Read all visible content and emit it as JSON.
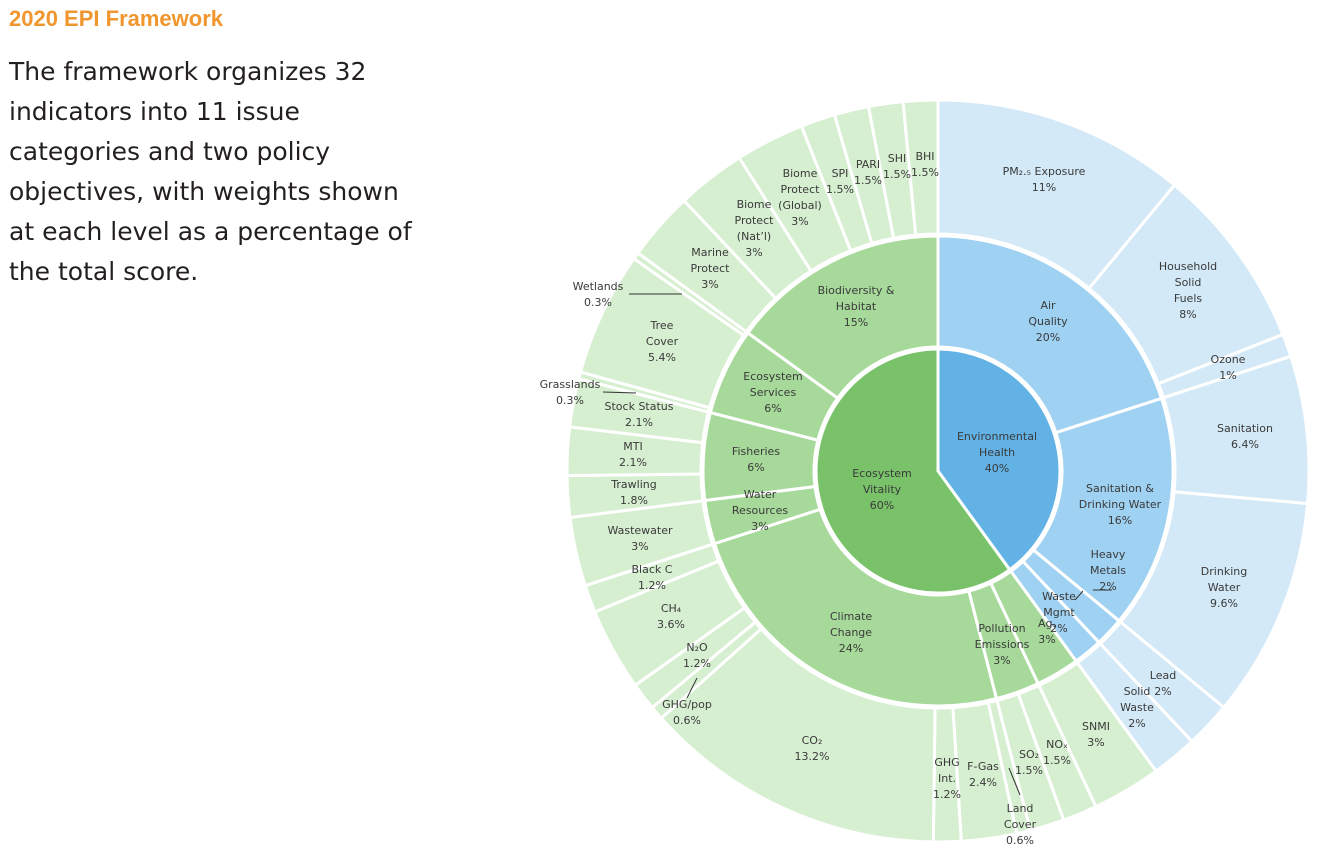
{
  "header": {
    "title": "2020 EPI Framework",
    "description": "The framework organizes 32 indicators into 11 issue categories and two policy objectives, with weights shown at each level as a percentage of the total score."
  },
  "colors": {
    "eh_inner": "#62b2e6",
    "eh_mid": "#9fd1f2",
    "eh_outer": "#d3e9f7",
    "ev_inner": "#79c26a",
    "ev_mid": "#a7da9a",
    "ev_outer": "#d7efd1",
    "separator": "#ffffff"
  },
  "chart_data": {
    "type": "sunburst",
    "levels": [
      "policy objective",
      "issue category",
      "indicator"
    ],
    "objectives": [
      {
        "name": "Environmental Health",
        "weight": 40,
        "label": [
          "Environmental",
          "Health",
          "40%"
        ],
        "categories": [
          {
            "name": "Air Quality",
            "weight": 20,
            "label": [
              "Air",
              "Quality",
              "20%"
            ],
            "indicators": [
              {
                "name": "PM2.5 Exposure",
                "weight": 11,
                "label": [
                  "PM₂.₅ Exposure",
                  "11%"
                ]
              },
              {
                "name": "Household Solid Fuels",
                "weight": 8,
                "label": [
                  "Household",
                  "Solid",
                  "Fuels",
                  "8%"
                ]
              },
              {
                "name": "Ozone",
                "weight": 1,
                "label": [
                  "Ozone",
                  "1%"
                ]
              }
            ]
          },
          {
            "name": "Sanitation & Drinking Water",
            "weight": 16,
            "label": [
              "Sanitation &",
              "Drinking Water",
              "16%"
            ],
            "indicators": [
              {
                "name": "Sanitation",
                "weight": 6.4,
                "label": [
                  "Sanitation",
                  "6.4%"
                ]
              },
              {
                "name": "Drinking Water",
                "weight": 9.6,
                "label": [
                  "Drinking",
                  "Water",
                  "9.6%"
                ]
              }
            ]
          },
          {
            "name": "Heavy Metals",
            "weight": 2,
            "label": [
              "Heavy",
              "Metals",
              "2%"
            ],
            "indicators": [
              {
                "name": "Lead",
                "weight": 2,
                "label": [
                  "Lead",
                  "2%"
                ]
              }
            ]
          },
          {
            "name": "Waste Mgmt",
            "weight": 2,
            "label": [
              "Waste",
              "Mgmt",
              "2%"
            ],
            "indicators": [
              {
                "name": "Solid Waste",
                "weight": 2,
                "label": [
                  "Solid",
                  "Waste",
                  "2%"
                ]
              }
            ]
          }
        ]
      },
      {
        "name": "Ecosystem Vitality",
        "weight": 60,
        "label": [
          "Ecosystem",
          "Vitality",
          "60%"
        ],
        "categories": [
          {
            "name": "Ag.",
            "weight": 3,
            "label": [
              "Ag.",
              "3%"
            ],
            "indicators": [
              {
                "name": "SNMI",
                "weight": 3,
                "label": [
                  "SNMI",
                  "3%"
                ]
              }
            ]
          },
          {
            "name": "Pollution Emissions",
            "weight": 3,
            "label": [
              "Pollution",
              "Emissions",
              "3%"
            ],
            "indicators": [
              {
                "name": "NOx",
                "weight": 1.5,
                "label": [
                  "NOₓ",
                  "1.5%"
                ]
              },
              {
                "name": "SO2",
                "weight": 1.5,
                "label": [
                  "SO₂",
                  "1.5%"
                ]
              }
            ]
          },
          {
            "name": "Climate Change",
            "weight": 24,
            "label": [
              "Climate",
              "Change",
              "24%"
            ],
            "indicators": [
              {
                "name": "Land Cover",
                "weight": 0.6,
                "label": [
                  "Land",
                  "Cover",
                  "0.6%"
                ]
              },
              {
                "name": "F-Gas",
                "weight": 2.4,
                "label": [
                  "F-Gas",
                  "2.4%"
                ]
              },
              {
                "name": "GHG Int.",
                "weight": 1.2,
                "label": [
                  "GHG",
                  "Int.",
                  "1.2%"
                ]
              },
              {
                "name": "CO2",
                "weight": 13.2,
                "label": [
                  "CO₂",
                  "13.2%"
                ]
              },
              {
                "name": "GHG/pop",
                "weight": 0.6,
                "label": [
                  "GHG/pop",
                  "0.6%"
                ]
              },
              {
                "name": "N2O",
                "weight": 1.2,
                "label": [
                  "N₂O",
                  "1.2%"
                ]
              },
              {
                "name": "CH4",
                "weight": 3.6,
                "label": [
                  "CH₄",
                  "3.6%"
                ]
              },
              {
                "name": "Black C",
                "weight": 1.2,
                "label": [
                  "Black C",
                  "1.2%"
                ]
              }
            ]
          },
          {
            "name": "Water Resources",
            "weight": 3,
            "label": [
              "Water",
              "Resources",
              "3%"
            ],
            "indicators": [
              {
                "name": "Wastewater",
                "weight": 3,
                "label": [
                  "Wastewater",
                  "3%"
                ]
              }
            ]
          },
          {
            "name": "Fisheries",
            "weight": 6,
            "label": [
              "Fisheries",
              "6%"
            ],
            "indicators": [
              {
                "name": "Trawling",
                "weight": 1.8,
                "label": [
                  "Trawling",
                  "1.8%"
                ]
              },
              {
                "name": "MTI",
                "weight": 2.1,
                "label": [
                  "MTI",
                  "2.1%"
                ]
              },
              {
                "name": "Stock Status",
                "weight": 2.1,
                "label": [
                  "Stock Status",
                  "2.1%"
                ]
              }
            ]
          },
          {
            "name": "Ecosystem Services",
            "weight": 6,
            "label": [
              "Ecosystem",
              "Services",
              "6%"
            ],
            "indicators": [
              {
                "name": "Grasslands",
                "weight": 0.3,
                "label": [
                  "Grasslands",
                  "0.3%"
                ]
              },
              {
                "name": "Tree Cover",
                "weight": 5.4,
                "label": [
                  "Tree",
                  "Cover",
                  "5.4%"
                ]
              },
              {
                "name": "Wetlands",
                "weight": 0.3,
                "label": [
                  "Wetlands",
                  "0.3%"
                ]
              }
            ]
          },
          {
            "name": "Biodiversity & Habitat",
            "weight": 15,
            "label": [
              "Biodiversity &",
              "Habitat",
              "15%"
            ],
            "indicators": [
              {
                "name": "Marine Protect",
                "weight": 3,
                "label": [
                  "Marine",
                  "Protect",
                  "3%"
                ]
              },
              {
                "name": "Biome Protect (Nat'l)",
                "weight": 3,
                "label": [
                  "Biome",
                  "Protect",
                  "(Nat’l)",
                  "3%"
                ]
              },
              {
                "name": "Biome Protect (Global)",
                "weight": 3,
                "label": [
                  "Biome",
                  "Protect",
                  "(Global)",
                  "3%"
                ]
              },
              {
                "name": "SPI",
                "weight": 1.5,
                "label": [
                  "SPI",
                  "1.5%"
                ]
              },
              {
                "name": "PARI",
                "weight": 1.5,
                "label": [
                  "PARI",
                  "1.5%"
                ]
              },
              {
                "name": "SHI",
                "weight": 1.5,
                "label": [
                  "SHI",
                  "1.5%"
                ]
              },
              {
                "name": "BHI",
                "weight": 1.5,
                "label": [
                  "BHI",
                  "1.5%"
                ]
              }
            ]
          }
        ]
      }
    ]
  }
}
